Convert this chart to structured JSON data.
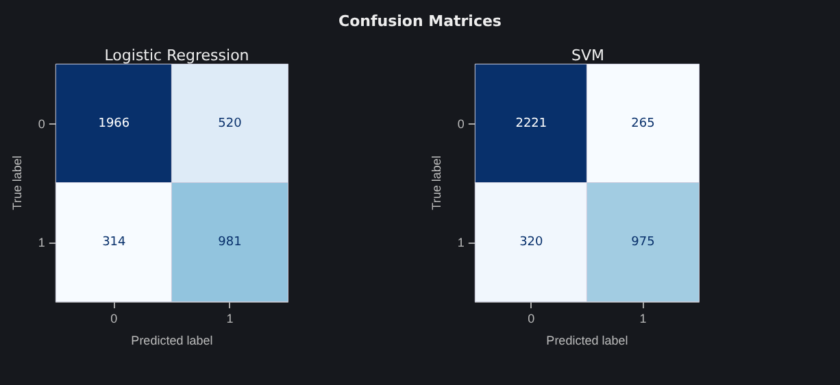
{
  "chart_data": [
    {
      "type": "other",
      "title": "Confusion Matrices"
    },
    {
      "type": "heatmap",
      "title": "Logistic Regression",
      "xlabel": "Predicted label",
      "ylabel": "True label",
      "categories": [
        "0",
        "1"
      ],
      "y_categories": [
        "0",
        "1"
      ],
      "cells": [
        [
          1966,
          520
        ],
        [
          314,
          981
        ]
      ],
      "data_labels": true
    },
    {
      "type": "heatmap",
      "title": "SVM",
      "xlabel": "Predicted label",
      "ylabel": "True label",
      "categories": [
        "0",
        "1"
      ],
      "y_categories": [
        "0",
        "1"
      ],
      "cells": [
        [
          2221,
          265
        ],
        [
          320,
          975
        ]
      ],
      "data_labels": true
    }
  ]
}
